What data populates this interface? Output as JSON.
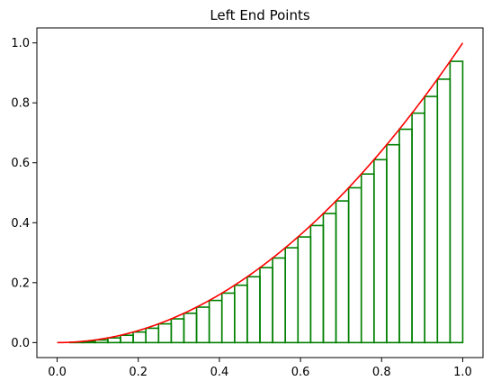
{
  "chart_data": {
    "type": "bar",
    "title": "Left End Points",
    "xlabel": "",
    "ylabel": "",
    "xlim": [
      -0.05,
      1.05
    ],
    "ylim": [
      -0.05,
      1.05
    ],
    "grid": false,
    "x_ticks": [
      0.0,
      0.2,
      0.4,
      0.6,
      0.8,
      1.0
    ],
    "x_tick_labels": [
      "0.0",
      "0.2",
      "0.4",
      "0.6",
      "0.8",
      "1.0"
    ],
    "y_ticks": [
      0.0,
      0.2,
      0.4,
      0.6,
      0.8,
      1.0
    ],
    "y_tick_labels": [
      "0.0",
      "0.2",
      "0.4",
      "0.6",
      "0.8",
      "1.0"
    ],
    "series": [
      {
        "kind": "line",
        "function": "x^2",
        "x": [
          0.0,
          0.05,
          0.1,
          0.15,
          0.2,
          0.25,
          0.3,
          0.35,
          0.4,
          0.45,
          0.5,
          0.55,
          0.6,
          0.65,
          0.7,
          0.75,
          0.8,
          0.85,
          0.9,
          0.95,
          1.0
        ],
        "y": [
          0.0,
          0.0025,
          0.01,
          0.0225,
          0.04,
          0.0625,
          0.09,
          0.1225,
          0.16,
          0.2025,
          0.25,
          0.3025,
          0.36,
          0.4225,
          0.49,
          0.5625,
          0.64,
          0.7225,
          0.81,
          0.9025,
          1.0
        ],
        "color": "#ff0000"
      },
      {
        "kind": "left-endpoint-rectangles",
        "bin_width": 0.03125,
        "left_x": [
          0.0,
          0.03125,
          0.0625,
          0.09375,
          0.125,
          0.15625,
          0.1875,
          0.21875,
          0.25,
          0.28125,
          0.3125,
          0.34375,
          0.375,
          0.40625,
          0.4375,
          0.46875,
          0.5,
          0.53125,
          0.5625,
          0.59375,
          0.625,
          0.65625,
          0.6875,
          0.71875,
          0.75,
          0.78125,
          0.8125,
          0.84375,
          0.875,
          0.90625,
          0.9375,
          0.96875
        ],
        "heights": [
          0.0,
          0.001,
          0.0039,
          0.0088,
          0.0156,
          0.0244,
          0.0352,
          0.0479,
          0.0625,
          0.0791,
          0.0977,
          0.1182,
          0.1406,
          0.165,
          0.1914,
          0.2197,
          0.25,
          0.2822,
          0.3164,
          0.3525,
          0.3906,
          0.4307,
          0.4727,
          0.5166,
          0.5625,
          0.6104,
          0.6602,
          0.7119,
          0.7656,
          0.8213,
          0.8789,
          0.9385
        ],
        "color": "#008000"
      }
    ]
  }
}
